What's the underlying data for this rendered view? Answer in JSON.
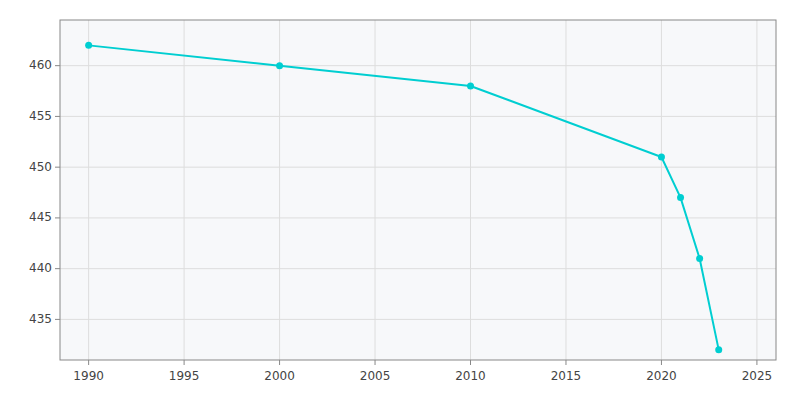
{
  "chart_data": {
    "type": "line",
    "x": [
      1990,
      2000,
      2010,
      2020,
      2021,
      2022,
      2023
    ],
    "values": [
      462,
      460,
      458,
      451,
      447,
      441,
      432
    ],
    "color": "#00CED1",
    "marker": "circle",
    "xlim": [
      1988.5,
      2026
    ],
    "ylim": [
      431,
      464.5
    ],
    "xticks": [
      1990,
      1995,
      2000,
      2005,
      2010,
      2015,
      2020,
      2025
    ],
    "yticks": [
      435,
      440,
      445,
      450,
      455,
      460
    ],
    "grid": true
  }
}
